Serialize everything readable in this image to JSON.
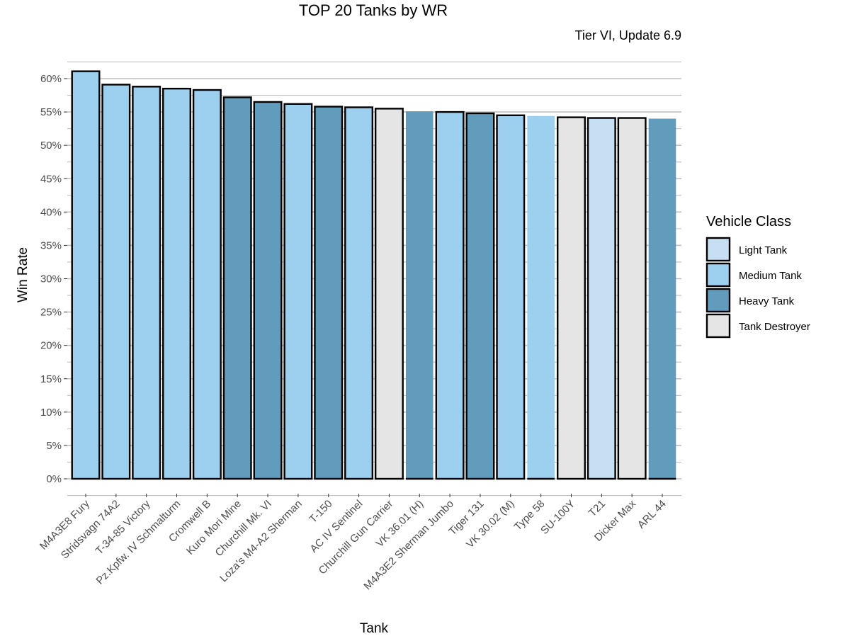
{
  "chart_data": {
    "type": "bar",
    "title": "TOP 20 Tanks by WR",
    "subtitle": "Tier VI, Update 6.9",
    "xlabel": "Tank",
    "ylabel": "Win Rate",
    "ylim": [
      0,
      0.625
    ],
    "yticks": [
      0,
      0.05,
      0.1,
      0.15,
      0.2,
      0.25,
      0.3,
      0.35,
      0.4,
      0.45,
      0.5,
      0.55,
      0.6
    ],
    "ytick_labels": [
      "0%",
      "5%",
      "10%",
      "15%",
      "20%",
      "25%",
      "30%",
      "35%",
      "40%",
      "45%",
      "50%",
      "55%",
      "60%"
    ],
    "grid": true,
    "legend_placement": "right",
    "legend_title": "Vehicle Class",
    "classes": [
      {
        "name": "Light Tank",
        "color": "#c6dff3"
      },
      {
        "name": "Medium Tank",
        "color": "#9dcfef"
      },
      {
        "name": "Heavy Tank",
        "color": "#619cbd"
      },
      {
        "name": "Tank Destroyer",
        "color": "#e5e5e5"
      }
    ],
    "bars": [
      {
        "category": "M4A3E8 Fury",
        "value": 0.611,
        "class": "Medium Tank",
        "outlined": true
      },
      {
        "category": "Stridsvagn 74A2",
        "value": 0.591,
        "class": "Medium Tank",
        "outlined": true
      },
      {
        "category": "T-34-85 Victory",
        "value": 0.588,
        "class": "Medium Tank",
        "outlined": true
      },
      {
        "category": "Pz.Kpfw. IV Schmalturm",
        "value": 0.585,
        "class": "Medium Tank",
        "outlined": true
      },
      {
        "category": "Cromwell B",
        "value": 0.583,
        "class": "Medium Tank",
        "outlined": true
      },
      {
        "category": "Kuro Mori Mine",
        "value": 0.572,
        "class": "Heavy Tank",
        "outlined": true
      },
      {
        "category": "Churchill Mk. VI",
        "value": 0.565,
        "class": "Heavy Tank",
        "outlined": true
      },
      {
        "category": "Loza's M4-A2 Sherman",
        "value": 0.562,
        "class": "Medium Tank",
        "outlined": true
      },
      {
        "category": "T-150",
        "value": 0.558,
        "class": "Heavy Tank",
        "outlined": true
      },
      {
        "category": "AC IV Sentinel",
        "value": 0.557,
        "class": "Medium Tank",
        "outlined": true
      },
      {
        "category": "Churchill Gun Carrier",
        "value": 0.555,
        "class": "Tank Destroyer",
        "outlined": true
      },
      {
        "category": "VK 36.01 (H)",
        "value": 0.551,
        "class": "Heavy Tank",
        "outlined": false
      },
      {
        "category": "M4A3E2 Sherman Jumbo",
        "value": 0.55,
        "class": "Medium Tank",
        "outlined": true
      },
      {
        "category": "Tiger 131",
        "value": 0.548,
        "class": "Heavy Tank",
        "outlined": true
      },
      {
        "category": "VK 30.02 (M)",
        "value": 0.545,
        "class": "Medium Tank",
        "outlined": true
      },
      {
        "category": "Type 58",
        "value": 0.544,
        "class": "Medium Tank",
        "outlined": false
      },
      {
        "category": "SU-100Y",
        "value": 0.542,
        "class": "Tank Destroyer",
        "outlined": true
      },
      {
        "category": "T21",
        "value": 0.541,
        "class": "Light Tank",
        "outlined": true
      },
      {
        "category": "Dicker Max",
        "value": 0.541,
        "class": "Tank Destroyer",
        "outlined": true
      },
      {
        "category": "ARL 44",
        "value": 0.54,
        "class": "Heavy Tank",
        "outlined": false
      }
    ]
  }
}
